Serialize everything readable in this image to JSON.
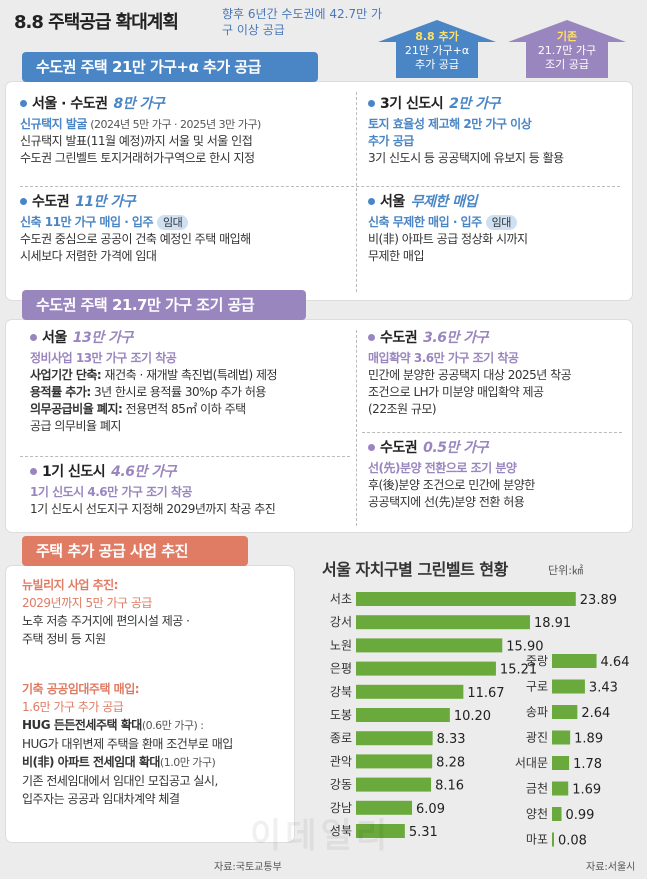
{
  "title": "8.8 주택공급 확대계획",
  "subtitle": "향후 6년간 수도권에 42.7만 가구 이상 공급",
  "arrows": {
    "new": {
      "head": "8.8 추가",
      "body1": "21만 가구+α",
      "body2": "추가 공급"
    },
    "existing": {
      "head": "기존",
      "body1": "21.7만 가구",
      "body2": "조기 공급"
    }
  },
  "section1": {
    "tab": "수도권 주택 21만 가구+α 추가 공급",
    "seoul": {
      "label": "서울 · 수도권",
      "amount": "8만 가구",
      "l1": "신규택지 발굴",
      "l1_small": "(2024년 5만 가구 · 2025년 3만 가구)",
      "l2": "신규택지 발표(11월 예정)까지 서울 및 서울 인접",
      "l3": "수도권 그린벨트 토지거래허가구역으로 한시 지정"
    },
    "third": {
      "label": "3기 신도시",
      "amount": "2만 가구",
      "l1": "토지 효율성 제고해 2만 가구 이상",
      "l2": "추가 공급",
      "l3": "3기 신도시 등 공공택지에 유보지 등 활용"
    },
    "metro": {
      "label": "수도권",
      "amount": "11만 가구",
      "l1": "신축 11만 가구 매입 · 입주",
      "badge": "임대",
      "l2": "수도권 중심으로 공공이 건축 예정인 주택 매입해",
      "l3": "시세보다 저렴한 가격에 임대"
    },
    "seoul2": {
      "label": "서울",
      "amount": "무제한 매입",
      "l1": "신축 무제한 매입 · 입주",
      "badge": "임대",
      "l2": "비(非) 아파트 공급 정상화 시까지",
      "l3": "무제한 매입"
    }
  },
  "section2": {
    "tab": "수도권 주택 21.7만 가구 조기 공급",
    "seoul": {
      "label": "서울",
      "amount": "13만 가구",
      "l1": "정비사업 13만 가구 조기 착공",
      "l2a": "사업기간 단축:",
      "l2b": " 재건축 · 재개발 촉진법(특례법) 제정",
      "l3a": "용적률 추가:",
      "l3b": " 3년 한시로 용적률 30%p 추가 허용",
      "l4a": "의무공급비율 폐지:",
      "l4b": " 전용면적 85㎡ 이하 주택",
      "l5": "공급 의무비율 폐지"
    },
    "first": {
      "label": "1기 신도시",
      "amount": "4.6만 가구",
      "l1": "1기 신도시 4.6만 가구 조기 착공",
      "l2": "1기 신도시 선도지구 지정해 2029년까지 착공 추진"
    },
    "metroA": {
      "label": "수도권",
      "amount": "3.6만 가구",
      "l1": "매입확약 3.6만 가구 조기 착공",
      "l2": "민간에 분양한 공공택지 대상 2025년 착공",
      "l3": "조건으로 LH가 미분양 매입확약 제공",
      "l4": "(22조원 규모)"
    },
    "metroB": {
      "label": "수도권",
      "amount": "0.5만 가구",
      "l1": "선(先)분양 전환으로 조기 분양",
      "l2": "후(後)분양 조건으로 민간에 분양한",
      "l3": "공공택지에 선(先)분양 전환 허용"
    }
  },
  "section3": {
    "tab": "주택 추가 공급 사업 추진",
    "n1": "뉴빌리지 사업 추진:",
    "n2": "2029년까지 5만 가구 공급",
    "n3": "노후 저층 주거지에 편의시설 제공 ·",
    "n4": "주택 정비 등 지원",
    "k1": "기축 공공임대주택 매입:",
    "k2": "1.6만 가구 추가 공급",
    "k3a": "HUG 든든전세주택 확대",
    "k3b": "(0.6만 가구) :",
    "k4": "HUG가 대위변제 주택을 환매 조건부로 매입",
    "k5a": "비(非) 아파트 전세임대 확대",
    "k5b": "(1.0만 가구)",
    "k6": "기존 전세임대에서 임대인 모집공고 실시,",
    "k7": "입주자는 공공과 임대차계약 체결",
    "source": "자료:국토교통부"
  },
  "chart_data": {
    "type": "bar",
    "title": "서울 자치구별 그린벨트 현황",
    "unit": "단위:㎢",
    "orientation": "horizontal",
    "color": "#6aaa3c",
    "groups": [
      {
        "categories": [
          "서초",
          "강서",
          "노원",
          "은평",
          "강북",
          "도봉",
          "종로",
          "관악",
          "강동",
          "강남",
          "성북"
        ],
        "values": [
          23.89,
          18.91,
          15.9,
          15.21,
          11.67,
          10.2,
          8.33,
          8.28,
          8.16,
          6.09,
          5.31
        ],
        "labels": [
          "23.89",
          "18.91",
          "15.90",
          "15.21",
          "11.67",
          "10.20",
          "8.33",
          "8.28",
          "8.16",
          "6.09",
          "5.31"
        ]
      },
      {
        "categories": [
          "중랑",
          "구로",
          "송파",
          "광진",
          "서대문",
          "금천",
          "양천",
          "마포"
        ],
        "values": [
          4.64,
          3.43,
          2.64,
          1.89,
          1.78,
          1.69,
          0.99,
          0.08
        ],
        "labels": [
          "4.64",
          "3.43",
          "2.64",
          "1.89",
          "1.78",
          "1.69",
          "0.99",
          "0.08"
        ]
      }
    ],
    "source": "자료:서울시"
  }
}
